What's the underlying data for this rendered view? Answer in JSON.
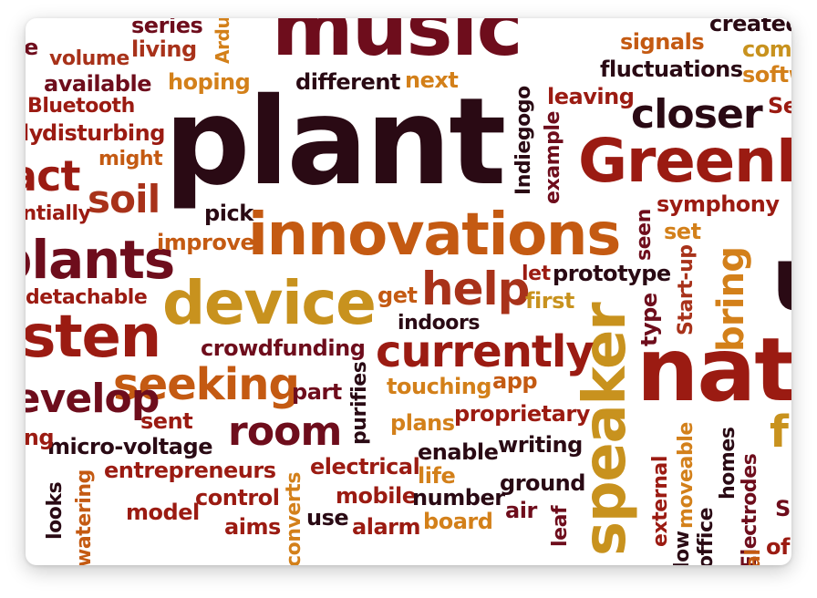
{
  "cloud": {
    "words": [
      "music",
      "plant",
      "innovations",
      "device",
      "GreenM",
      "closer",
      "nat",
      "speaker",
      "currently",
      "seeking",
      "room",
      "help",
      "listen",
      "plants",
      "develop",
      "soil",
      "bring",
      "act",
      "series",
      "living",
      "volume",
      "available",
      "Bluetooth",
      "disturbing",
      "might",
      "hoping",
      "different",
      "next",
      "signals",
      "fluctuations",
      "created",
      "com",
      "softw",
      "leaving",
      "Indiegogo",
      "example",
      "symphony",
      "pick",
      "improve",
      "detachable",
      "potentially",
      "seen",
      "set",
      "prototype",
      "let",
      "first",
      "get",
      "type",
      "Start-up",
      "indoors",
      "crowdfunding",
      "part",
      "purifies",
      "touching",
      "app",
      "plans",
      "proprietary",
      "sent",
      "micro-voltage",
      "enable",
      "writing",
      "entrepreneurs",
      "electrical",
      "life",
      "ground",
      "air",
      "mobile",
      "number",
      "control",
      "model",
      "looks",
      "watering",
      "aims",
      "converts",
      "use",
      "alarm",
      "board",
      "leaf",
      "external",
      "moveable",
      "low",
      "office",
      "homes",
      "Electrodes",
      "Ardu",
      "Se",
      "e",
      "ly",
      "ing",
      "of",
      "f",
      "S",
      "al",
      "u"
    ]
  },
  "colors": {
    "dark": "#2a0a14",
    "maroon": "#6e0d1c",
    "red": "#9b1b12",
    "rust": "#a8321a",
    "orange": "#c45a12",
    "amber": "#d3801a",
    "gold": "#c8921e"
  }
}
